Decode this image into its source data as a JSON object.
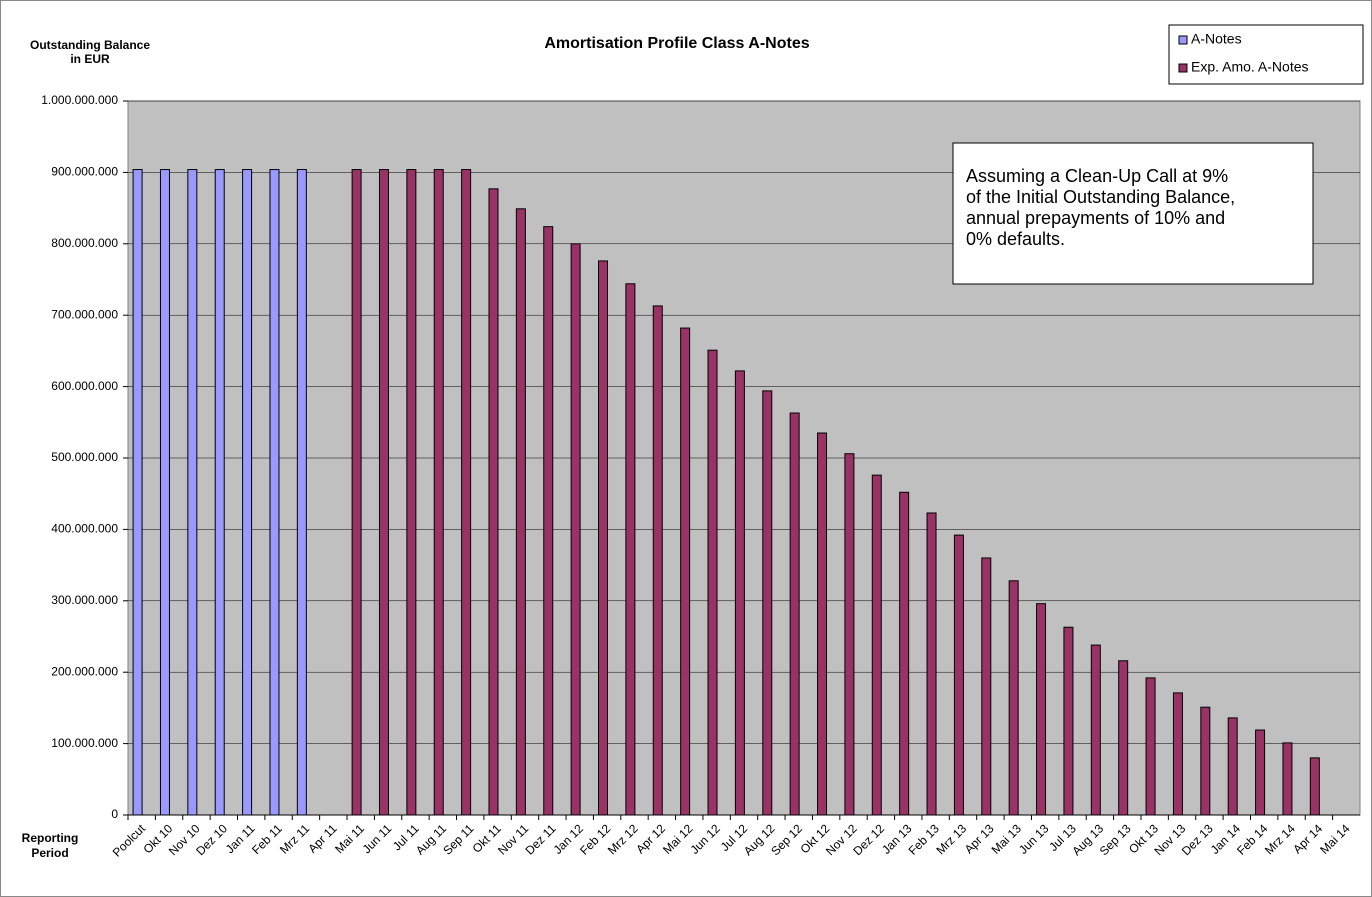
{
  "chart_data": {
    "type": "bar",
    "title": "Amortisation Profile Class A-Notes",
    "y_label": [
      "Outstanding Balance",
      "in EUR"
    ],
    "x_label": [
      "Reporting",
      "Period"
    ],
    "annotation": [
      "Assuming a Clean-Up Call at 9%",
      "of the Initial Outstanding Balance,",
      "annual prepayments of 10% and",
      "0% defaults."
    ],
    "categories": [
      "Poolcut",
      "Okt 10",
      "Nov 10",
      "Dez 10",
      "Jan 11",
      "Feb 11",
      "Mrz 11",
      "Apr 11",
      "Mai 11",
      "Jun 11",
      "Jul 11",
      "Aug 11",
      "Sep 11",
      "Okt 11",
      "Nov 11",
      "Dez 11",
      "Jan 12",
      "Feb 12",
      "Mrz 12",
      "Apr 12",
      "Mai 12",
      "Jun 12",
      "Jul 12",
      "Aug 12",
      "Sep 12",
      "Okt 12",
      "Nov 12",
      "Dez 12",
      "Jan 13",
      "Feb 13",
      "Mrz 13",
      "Apr 13",
      "Mai 13",
      "Jun 13",
      "Jul 13",
      "Aug 13",
      "Sep 13",
      "Okt 13",
      "Nov 13",
      "Dez 13",
      "Jan 14",
      "Feb 14",
      "Mrz 14",
      "Apr 14",
      "Mai 14"
    ],
    "series": [
      {
        "name": "A-Notes",
        "color": "#9999ff",
        "values": [
          904000000,
          904000000,
          904000000,
          904000000,
          904000000,
          904000000,
          904000000,
          null,
          null,
          null,
          null,
          null,
          null,
          null,
          null,
          null,
          null,
          null,
          null,
          null,
          null,
          null,
          null,
          null,
          null,
          null,
          null,
          null,
          null,
          null,
          null,
          null,
          null,
          null,
          null,
          null,
          null,
          null,
          null,
          null,
          null,
          null,
          null,
          null,
          null
        ]
      },
      {
        "name": "Exp. Amo. A-Notes",
        "color": "#993366",
        "values": [
          null,
          null,
          null,
          null,
          null,
          null,
          null,
          null,
          904000000,
          904000000,
          904000000,
          904000000,
          904000000,
          877000000,
          849000000,
          824000000,
          800000000,
          776000000,
          744000000,
          713000000,
          682000000,
          651000000,
          622000000,
          594000000,
          563000000,
          535000000,
          506000000,
          476000000,
          452000000,
          423000000,
          392000000,
          360000000,
          328000000,
          296000000,
          263000000,
          238000000,
          216000000,
          192000000,
          171000000,
          151000000,
          136000000,
          119000000,
          101000000,
          80000000,
          null
        ]
      }
    ],
    "ylim": [
      0,
      1000000000
    ],
    "yticks": [
      0,
      {
        "value": 100000000,
        "label": "100.000.000"
      },
      {
        "value": 200000000,
        "label": "200.000.000"
      },
      {
        "value": 300000000,
        "label": "300.000.000"
      },
      {
        "value": 400000000,
        "label": "400.000.000"
      },
      {
        "value": 500000000,
        "label": "500.000.000"
      },
      {
        "value": 600000000,
        "label": "600.000.000"
      },
      {
        "value": 700000000,
        "label": "700.000.000"
      },
      {
        "value": 800000000,
        "label": "800.000.000"
      },
      {
        "value": 900000000,
        "label": "900.000.000"
      },
      {
        "value": 1000000000,
        "label": "1.000.000.000"
      }
    ],
    "grid": true,
    "legend": "top-right",
    "plot_background": "#c0c0c0"
  }
}
